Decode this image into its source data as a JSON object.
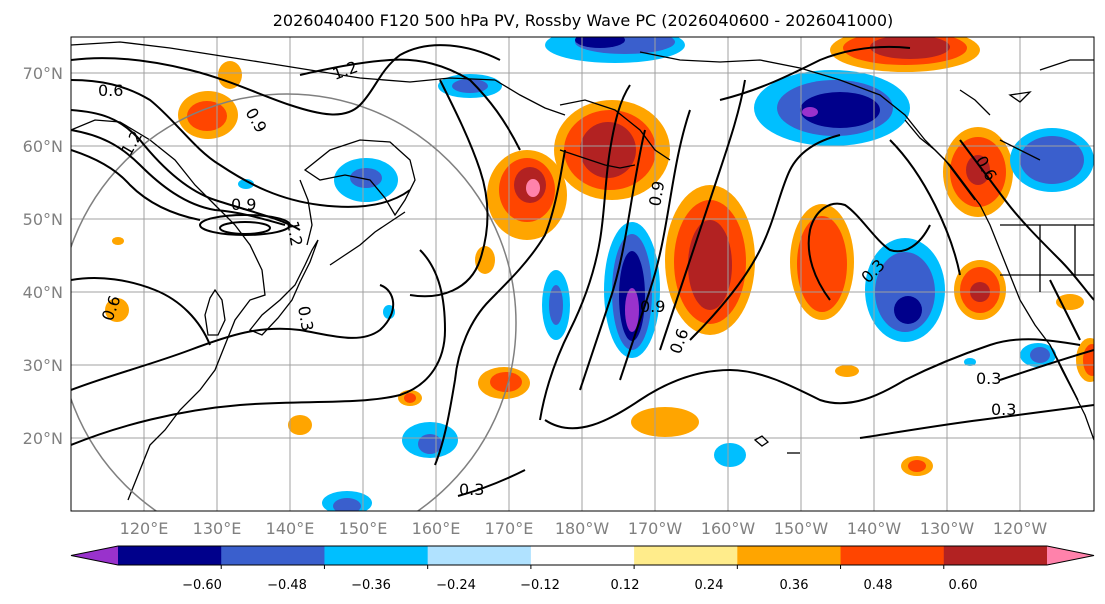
{
  "title": "2026040400 F120 500 hPa PV, Rossby Wave PC (2026040600 - 2026041000)",
  "latitude_labels": [
    "70°N",
    "60°N",
    "50°N",
    "40°N",
    "30°N",
    "20°N"
  ],
  "longitude_labels": [
    "120°E",
    "130°E",
    "140°E",
    "150°E",
    "160°E",
    "170°E",
    "180°W",
    "170°W",
    "160°W",
    "150°W",
    "140°W",
    "130°W",
    "120°W"
  ],
  "colorbar": {
    "ticks": [
      "−0.60",
      "−0.48",
      "−0.36",
      "−0.24",
      "−0.12",
      "0.12",
      "0.24",
      "0.36",
      "0.48",
      "0.60"
    ],
    "colors": [
      "#9932cc",
      "#00008b",
      "#3a5fcd",
      "#00bfff",
      "#b0e2ff",
      "#ffffff",
      "#ffec8b",
      "#ffa500",
      "#ff4500",
      "#b22222",
      "#ff82ab"
    ]
  },
  "contour_labels": [
    "0.6",
    "1.2",
    "0.9",
    "1.2",
    "0.9",
    "1.2",
    "0.6",
    "0.3",
    "0.9",
    "0.9",
    "0.6",
    "0.3",
    "0.6",
    "0.3",
    "0.3",
    "0.3"
  ],
  "colors": {
    "land_line": "#000000",
    "grid": "#a0a0a0",
    "contour": "#000000",
    "circle": "#808080"
  }
}
